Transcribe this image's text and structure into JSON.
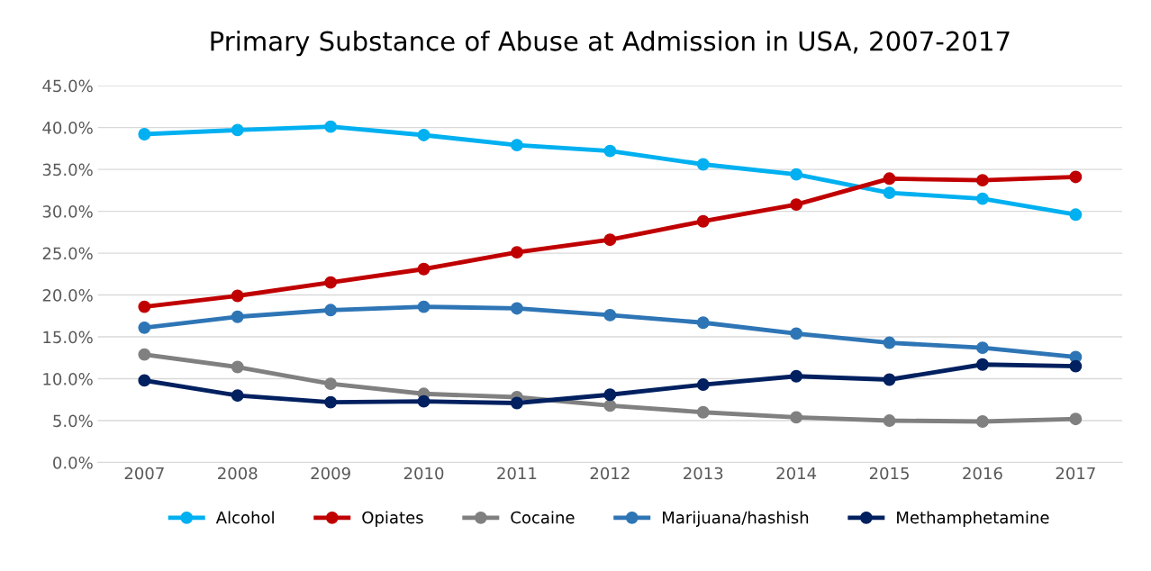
{
  "chart_data": {
    "type": "line",
    "title": "Primary Substance of Abuse at Admission in USA, 2007-2017",
    "categories": [
      "2007",
      "2008",
      "2009",
      "2010",
      "2011",
      "2012",
      "2013",
      "2014",
      "2015",
      "2016",
      "2017"
    ],
    "series": [
      {
        "name": "Alcohol",
        "color": "#00b0f0",
        "values": [
          39.2,
          39.7,
          40.1,
          39.1,
          37.9,
          37.2,
          35.6,
          34.4,
          32.2,
          31.5,
          29.6
        ]
      },
      {
        "name": "Opiates",
        "color": "#c00000",
        "values": [
          18.6,
          19.9,
          21.5,
          23.1,
          25.1,
          26.6,
          28.8,
          30.8,
          33.9,
          33.7,
          34.1
        ]
      },
      {
        "name": "Cocaine",
        "color": "#808080",
        "values": [
          12.9,
          11.4,
          9.4,
          8.2,
          7.8,
          6.8,
          6.0,
          5.4,
          5.0,
          4.9,
          5.2
        ]
      },
      {
        "name": "Marijuana/hashish",
        "color": "#2e75b6",
        "values": [
          16.1,
          17.4,
          18.2,
          18.6,
          18.4,
          17.6,
          16.7,
          15.4,
          14.3,
          13.7,
          12.6
        ]
      },
      {
        "name": "Methamphetamine",
        "color": "#002060",
        "values": [
          9.8,
          8.0,
          7.2,
          7.3,
          7.1,
          8.1,
          9.3,
          10.3,
          9.9,
          11.7,
          11.5
        ]
      }
    ],
    "ylim": [
      0,
      45
    ],
    "yticks": [
      {
        "value": 0,
        "label": "0.0%"
      },
      {
        "value": 5,
        "label": "5.0%"
      },
      {
        "value": 10,
        "label": "10.0%"
      },
      {
        "value": 15,
        "label": "15.0%"
      },
      {
        "value": 20,
        "label": "20.0%"
      },
      {
        "value": 25,
        "label": "25.0%"
      },
      {
        "value": 30,
        "label": "30.0%"
      },
      {
        "value": 35,
        "label": "35.0%"
      },
      {
        "value": 40,
        "label": "40.0%"
      },
      {
        "value": 45,
        "label": "45.0%"
      }
    ],
    "grid": "y",
    "legend": "bottom",
    "marker": "circle",
    "line_style": "solid"
  }
}
